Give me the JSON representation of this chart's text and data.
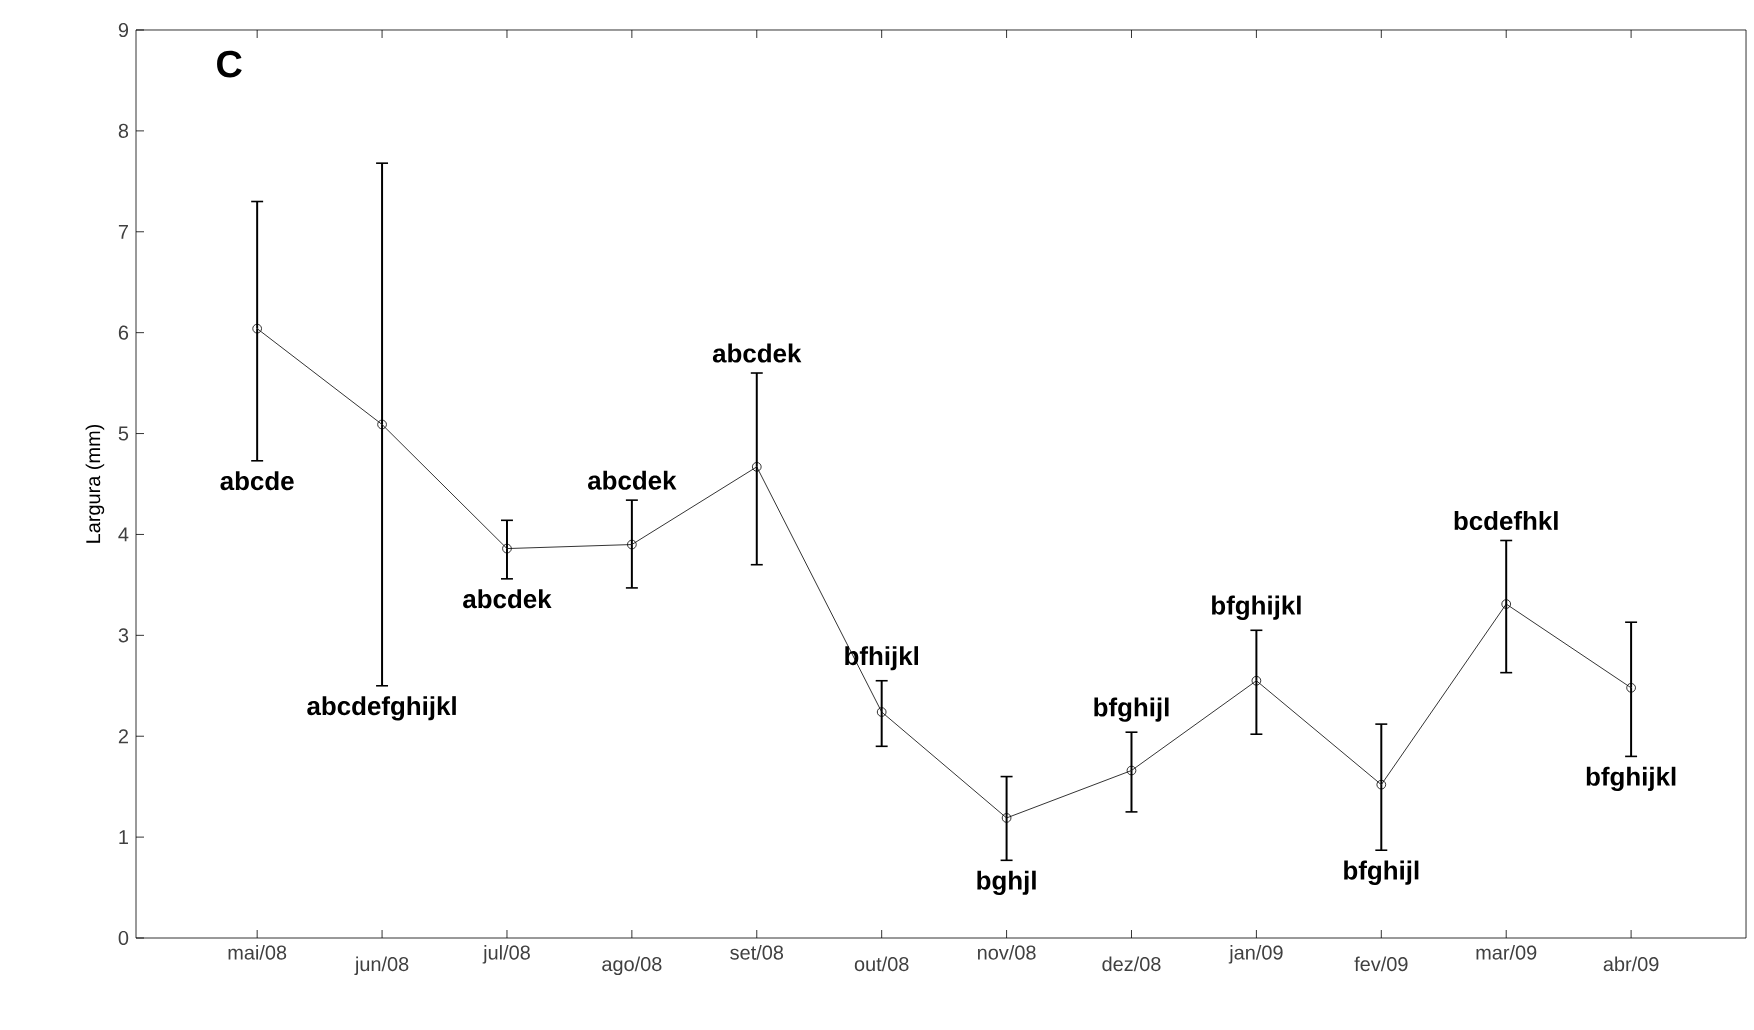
{
  "chart_data": {
    "type": "line",
    "ylabel": "Largura (mm)",
    "categories": [
      "mai/08",
      "jun/08",
      "jul/08",
      "ago/08",
      "set/08",
      "out/08",
      "nov/08",
      "dez/08",
      "jan/09",
      "fev/09",
      "mar/09",
      "abr/09"
    ],
    "series": [
      {
        "color": "#000000",
        "values": [
          6.04,
          5.09,
          3.86,
          3.9,
          4.67,
          2.24,
          1.19,
          1.66,
          2.55,
          1.52,
          3.31,
          2.48
        ],
        "errors": [
          [
            4.73,
            7.3
          ],
          [
            2.5,
            7.68
          ],
          [
            3.56,
            4.14
          ],
          [
            3.47,
            4.34
          ],
          [
            3.7,
            5.6
          ],
          [
            1.9,
            2.55
          ],
          [
            0.77,
            1.6
          ],
          [
            1.25,
            2.04
          ],
          [
            2.02,
            3.05
          ],
          [
            0.87,
            2.12
          ],
          [
            2.63,
            3.94
          ],
          [
            1.8,
            3.13
          ]
        ]
      }
    ],
    "ylim": [
      0,
      9
    ],
    "yticks": [
      0,
      1,
      2,
      3,
      4,
      5,
      6,
      7,
      8,
      9
    ],
    "marker": "circle",
    "line_style": "solid",
    "grid": false,
    "annotations": [
      "C",
      {
        "text": "abcde",
        "x": "mai/08",
        "y": 4.73
      },
      {
        "text": "abcdefghijkl",
        "x": "jun/08",
        "y": 2.5
      },
      {
        "text": "abcdek",
        "x": "jul/08",
        "y": 3.56
      },
      {
        "text": "abcdek",
        "x": "ago/08",
        "y": 4.34
      },
      {
        "text": "abcdek",
        "x": "set/08",
        "y": 5.6
      },
      {
        "text": "bfhijkl",
        "x": "out/08",
        "y": 2.55
      },
      {
        "text": "bghjl",
        "x": "nov/08",
        "y": 0.77
      },
      {
        "text": "bfghijl",
        "x": "dez/08",
        "y": 2.04
      },
      {
        "text": "bfghijkl",
        "x": "jan/09",
        "y": 3.05
      },
      {
        "text": "bfghijl",
        "x": "fev/09",
        "y": 0.87
      },
      {
        "text": "bcdefhkl",
        "x": "mar/09",
        "y": 3.94
      },
      {
        "text": "bfghijkl",
        "x": "abr/09",
        "y": 1.8
      }
    ]
  }
}
